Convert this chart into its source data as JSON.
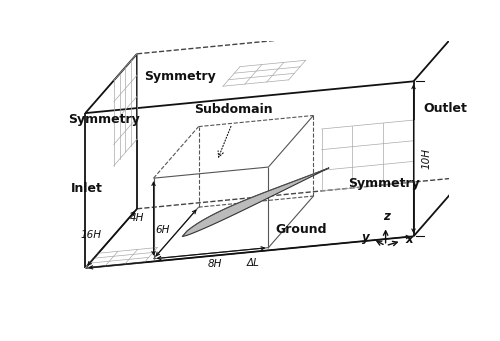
{
  "bg_color": "#ffffff",
  "line_color": "#111111",
  "dashed_color": "#444444",
  "grid_color": "#999999",
  "labels": {
    "symmetry_top": "Symmetry",
    "symmetry_left": "Symmetry",
    "symmetry_right": "Symmetry",
    "outlet": "Outlet",
    "inlet": "Inlet",
    "ground": "Ground",
    "subdomain": "Subdomain",
    "dim_4H": "4H",
    "dim_6H": "6H",
    "dim_8H": "8H",
    "dim_16H": "16H",
    "dim_10H": "10H",
    "dim_AL": "ΔL",
    "axis_x": "x",
    "axis_y": "y",
    "axis_z": "z"
  },
  "fontsize_main": 9,
  "fontsize_dim": 7.5
}
